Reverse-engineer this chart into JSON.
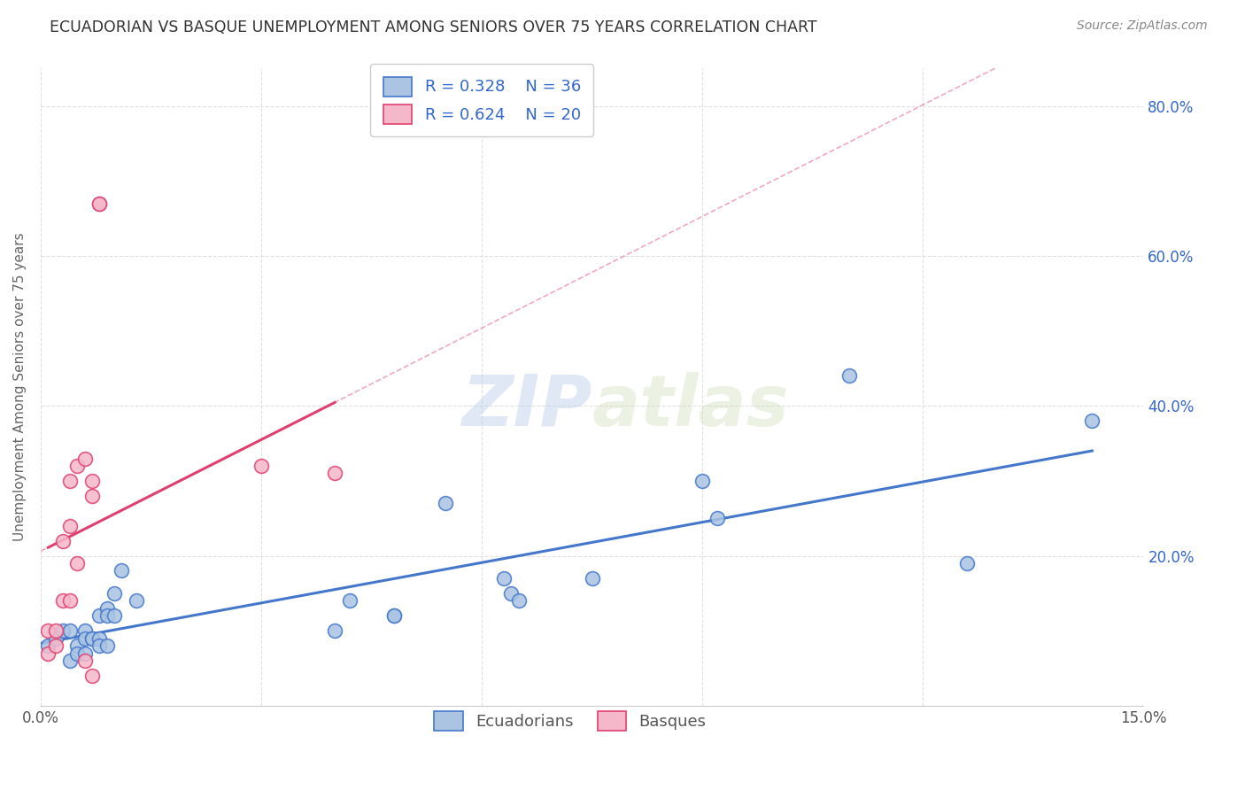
{
  "title": "ECUADORIAN VS BASQUE UNEMPLOYMENT AMONG SENIORS OVER 75 YEARS CORRELATION CHART",
  "source": "Source: ZipAtlas.com",
  "ylabel": "Unemployment Among Seniors over 75 years",
  "xlim": [
    0,
    0.15
  ],
  "ylim": [
    0,
    0.85
  ],
  "xticks": [
    0.0,
    0.03,
    0.06,
    0.09,
    0.12,
    0.15
  ],
  "xticklabels": [
    "0.0%",
    "",
    "",
    "",
    "",
    "15.0%"
  ],
  "yticks": [
    0.0,
    0.2,
    0.4,
    0.6,
    0.8
  ],
  "yticklabels": [
    "",
    "20.0%",
    "40.0%",
    "60.0%",
    "80.0%"
  ],
  "blue_R": 0.328,
  "blue_N": 36,
  "pink_R": 0.624,
  "pink_N": 20,
  "blue_color": "#aac4e2",
  "pink_color": "#f5b8ca",
  "blue_line_color": "#4477cc",
  "pink_line_color": "#e04070",
  "legend_text_color": "#3366cc",
  "ecuadorians_x": [
    0.001,
    0.002,
    0.003,
    0.004,
    0.004,
    0.005,
    0.005,
    0.006,
    0.006,
    0.006,
    0.007,
    0.007,
    0.008,
    0.008,
    0.008,
    0.009,
    0.009,
    0.009,
    0.01,
    0.01,
    0.011,
    0.013,
    0.04,
    0.042,
    0.048,
    0.048,
    0.055,
    0.063,
    0.064,
    0.065,
    0.075,
    0.09,
    0.092,
    0.11,
    0.126,
    0.143
  ],
  "ecuadorians_y": [
    0.08,
    0.09,
    0.1,
    0.06,
    0.1,
    0.08,
    0.07,
    0.1,
    0.09,
    0.07,
    0.09,
    0.09,
    0.12,
    0.09,
    0.08,
    0.13,
    0.12,
    0.08,
    0.15,
    0.12,
    0.18,
    0.14,
    0.1,
    0.14,
    0.12,
    0.12,
    0.27,
    0.17,
    0.15,
    0.14,
    0.17,
    0.3,
    0.25,
    0.44,
    0.19,
    0.38
  ],
  "basques_x": [
    0.001,
    0.001,
    0.002,
    0.002,
    0.003,
    0.003,
    0.004,
    0.004,
    0.004,
    0.005,
    0.005,
    0.006,
    0.006,
    0.007,
    0.007,
    0.007,
    0.008,
    0.008,
    0.03,
    0.04
  ],
  "basques_y": [
    0.1,
    0.07,
    0.08,
    0.1,
    0.14,
    0.22,
    0.24,
    0.3,
    0.14,
    0.19,
    0.32,
    0.33,
    0.06,
    0.28,
    0.04,
    0.3,
    0.67,
    0.67,
    0.32,
    0.31
  ],
  "background_color": "#ffffff",
  "grid_color": "#dddddd"
}
